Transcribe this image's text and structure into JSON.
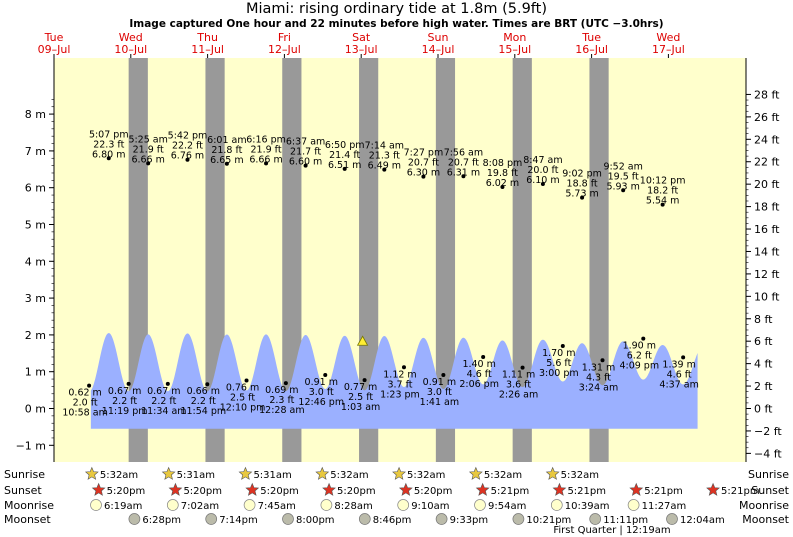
{
  "chart_data": {
    "type": "area",
    "title": "Miami: rising  ordinary tide at 1.8m (5.9ft)",
    "subtitle": "Image captured One hour and 22 minutes before high water. Times are BRT (UTC −3.0hrs)",
    "days": [
      {
        "dow": "Tue",
        "date": "09–Jul"
      },
      {
        "dow": "Wed",
        "date": "10–Jul"
      },
      {
        "dow": "Thu",
        "date": "11–Jul"
      },
      {
        "dow": "Fri",
        "date": "12–Jul"
      },
      {
        "dow": "Sat",
        "date": "13–Jul"
      },
      {
        "dow": "Sun",
        "date": "14–Jul"
      },
      {
        "dow": "Mon",
        "date": "15–Jul"
      },
      {
        "dow": "Tue",
        "date": "16–Jul"
      },
      {
        "dow": "Wed",
        "date": "17–Jul"
      }
    ],
    "left_axis": {
      "unit": "m",
      "ticks": [
        "8 m",
        "7 m",
        "6 m",
        "5 m",
        "4 m",
        "3 m",
        "2 m",
        "1 m",
        "0 m",
        "−1 m"
      ],
      "range": [
        -1.25,
        8.7
      ]
    },
    "right_axis": {
      "unit": "ft",
      "ticks": [
        "28 ft",
        "26 ft",
        "24 ft",
        "22 ft",
        "20 ft",
        "18 ft",
        "16 ft",
        "14 ft",
        "12 ft",
        "10 ft",
        "8 ft",
        "6 ft",
        "4 ft",
        "2 ft",
        "0 ft",
        "−2 ft",
        "−4 ft"
      ]
    },
    "high_points": [
      {
        "label": [
          "5:07 pm",
          "22.3 ft",
          "6.80 m"
        ],
        "day": 0.713,
        "value": 6.8
      },
      {
        "label": [
          "5:25 am",
          "21.9 ft",
          "6.66 m"
        ],
        "day": 1.226,
        "value": 6.66
      },
      {
        "label": [
          "5:42 pm",
          "22.2 ft",
          "6.76 m"
        ],
        "day": 1.738,
        "value": 6.76
      },
      {
        "label": [
          "6:01 am",
          "21.8 ft",
          "6.65 m"
        ],
        "day": 2.251,
        "value": 6.65
      },
      {
        "label": [
          "6:16 pm",
          "21.9 ft",
          "6.66 m"
        ],
        "day": 2.761,
        "value": 6.66
      },
      {
        "label": [
          "6:37 am",
          "21.7 ft",
          "6.60 m"
        ],
        "day": 3.276,
        "value": 6.6
      },
      {
        "label": [
          "6:50 pm",
          "21.4 ft",
          "6.51 m"
        ],
        "day": 3.785,
        "value": 6.51
      },
      {
        "label": [
          "7:14 am",
          "21.3 ft",
          "6.49 m"
        ],
        "day": 4.301,
        "value": 6.49
      },
      {
        "label": [
          "7:27 pm",
          "20.7 ft",
          "6.30 m"
        ],
        "day": 4.81,
        "value": 6.3
      },
      {
        "label": [
          "7:56 am",
          "20.7 ft",
          "6.31 m"
        ],
        "day": 5.331,
        "value": 6.31
      },
      {
        "label": [
          "8:08 pm",
          "19.8 ft",
          "6.02 m"
        ],
        "day": 5.839,
        "value": 6.02
      },
      {
        "label": [
          "8:47 am",
          "20.0 ft",
          "6.10 m"
        ],
        "day": 6.366,
        "value": 6.1
      },
      {
        "label": [
          "9:02 pm",
          "18.8 ft",
          "5.73 m"
        ],
        "day": 6.876,
        "value": 5.73
      },
      {
        "label": [
          "9:52 am",
          "19.5 ft",
          "5.93 m"
        ],
        "day": 7.411,
        "value": 5.93
      },
      {
        "label": [
          "10:12 pm",
          "18.2 ft",
          "5.54 m"
        ],
        "day": 7.925,
        "value": 5.54
      }
    ],
    "low_points": [
      {
        "label": [
          "0.62 m",
          "2.0 ft",
          "10:58 am"
        ],
        "day": 0.457,
        "value": 0.62
      },
      {
        "label": [
          "0.67 m",
          "2.2 ft",
          "11:19 pm"
        ],
        "day": 0.972,
        "value": 0.67
      },
      {
        "label": [
          "0.67 m",
          "2.2 ft",
          "11:34 am"
        ],
        "day": 1.482,
        "value": 0.67
      },
      {
        "label": [
          "0.66 m",
          "2.2 ft",
          "11:54 pm"
        ],
        "day": 1.996,
        "value": 0.66
      },
      {
        "label": [
          "0.76 m",
          "2.5 ft",
          "12:10 pm"
        ],
        "day": 2.507,
        "value": 0.76
      },
      {
        "label": [
          "0.69 m",
          "2.3 ft",
          "12:28 am"
        ],
        "day": 3.019,
        "value": 0.69
      },
      {
        "label": [
          "0.91 m",
          "3.0 ft",
          "12:46 pm"
        ],
        "day": 3.532,
        "value": 0.91
      },
      {
        "label": [
          "0.77 m",
          "2.5 ft",
          "1:03 am"
        ],
        "day": 4.044,
        "value": 0.77
      },
      {
        "label": [
          "1.12 m",
          "3.7 ft",
          "1:23 pm"
        ],
        "day": 4.557,
        "value": 1.12
      },
      {
        "label": [
          "0.91 m",
          "3.0 ft",
          "1:41 am"
        ],
        "day": 5.07,
        "value": 0.91
      },
      {
        "label": [
          "1.40 m",
          "4.6 ft",
          "2:06 pm"
        ],
        "day": 5.588,
        "value": 1.4
      },
      {
        "label": [
          "1.11 m",
          "3.6 ft",
          "2:26 am"
        ],
        "day": 6.101,
        "value": 1.11
      },
      {
        "label": [
          "1.70 m",
          "5.6 ft",
          "3:00 pm"
        ],
        "day": 6.625,
        "value": 1.7
      },
      {
        "label": [
          "1.31 m",
          "4.3 ft",
          "3:24 am"
        ],
        "day": 7.142,
        "value": 1.31
      },
      {
        "label": [
          "1.90 m",
          "6.2 ft",
          "4:09 pm"
        ],
        "day": 7.673,
        "value": 1.9
      },
      {
        "label": [
          "1.39 m",
          "4.6 ft",
          "4:37 am"
        ],
        "day": 8.192,
        "value": 1.39
      }
    ],
    "current_marker": {
      "day": 4.018,
      "value": 1.8
    },
    "night_bands": [
      [
        0.972,
        1.222
      ],
      [
        1.972,
        2.222
      ],
      [
        2.972,
        3.222
      ],
      [
        3.972,
        4.222
      ],
      [
        4.972,
        5.222
      ],
      [
        5.972,
        6.222
      ],
      [
        6.972,
        7.222
      ]
    ],
    "data_end_day": 8.38,
    "colors": {
      "day": "#ffffcc",
      "night": "#999999",
      "water": "#9bb0ff",
      "sun": "#e8c840",
      "sunset": "#dd3322",
      "moonrise": "#ffffcc",
      "moonset": "#bbbbaa"
    }
  },
  "bottom": {
    "row_labels_left": [
      "Sunrise",
      "Sunset",
      "Moonrise",
      "Moonset"
    ],
    "row_labels_right": [
      "Sunrise",
      "Sunset",
      "Moonrise",
      "Moonset"
    ],
    "sunrise": [
      {
        "day": 1.222,
        "time": "5:32am"
      },
      {
        "day": 2.222,
        "time": "5:31am"
      },
      {
        "day": 3.222,
        "time": "5:31am"
      },
      {
        "day": 4.222,
        "time": "5:32am"
      },
      {
        "day": 5.222,
        "time": "5:32am"
      },
      {
        "day": 6.222,
        "time": "5:32am"
      },
      {
        "day": 7.222,
        "time": "5:32am"
      }
    ],
    "sunset": [
      {
        "day": 0.972,
        "time": "5:20pm"
      },
      {
        "day": 1.972,
        "time": "5:20pm"
      },
      {
        "day": 2.972,
        "time": "5:20pm"
      },
      {
        "day": 3.972,
        "time": "5:20pm"
      },
      {
        "day": 4.972,
        "time": "5:20pm"
      },
      {
        "day": 5.972,
        "time": "5:21pm"
      },
      {
        "day": 6.972,
        "time": "5:21pm"
      },
      {
        "day": 7.972,
        "time": "5:21pm"
      },
      {
        "day": 8.972,
        "time": "5:21pm"
      }
    ],
    "moonrise": [
      {
        "day": 0.0,
        "time": "6:19am"
      },
      {
        "day": 1.0,
        "time": "7:02am"
      },
      {
        "day": 2.0,
        "time": "7:45am"
      },
      {
        "day": 3.0,
        "time": "8:28am"
      },
      {
        "day": 4.0,
        "time": "9:10am"
      },
      {
        "day": 5.0,
        "time": "9:54am"
      },
      {
        "day": 6.0,
        "time": "10:39am"
      },
      {
        "day": 7.0,
        "time": "11:27am"
      }
    ],
    "moonset": [
      {
        "day": 0.5,
        "time": "6:28pm"
      },
      {
        "day": 1.5,
        "time": "7:14pm"
      },
      {
        "day": 2.5,
        "time": "8:00pm"
      },
      {
        "day": 3.5,
        "time": "8:46pm"
      },
      {
        "day": 4.5,
        "time": "9:33pm"
      },
      {
        "day": 5.5,
        "time": "10:21pm"
      },
      {
        "day": 6.5,
        "time": "11:11pm"
      },
      {
        "day": 7.5,
        "time": "12:04am"
      }
    ],
    "moon_phase": {
      "label": "First Quarter | 12:19am",
      "day": 6.5
    }
  }
}
